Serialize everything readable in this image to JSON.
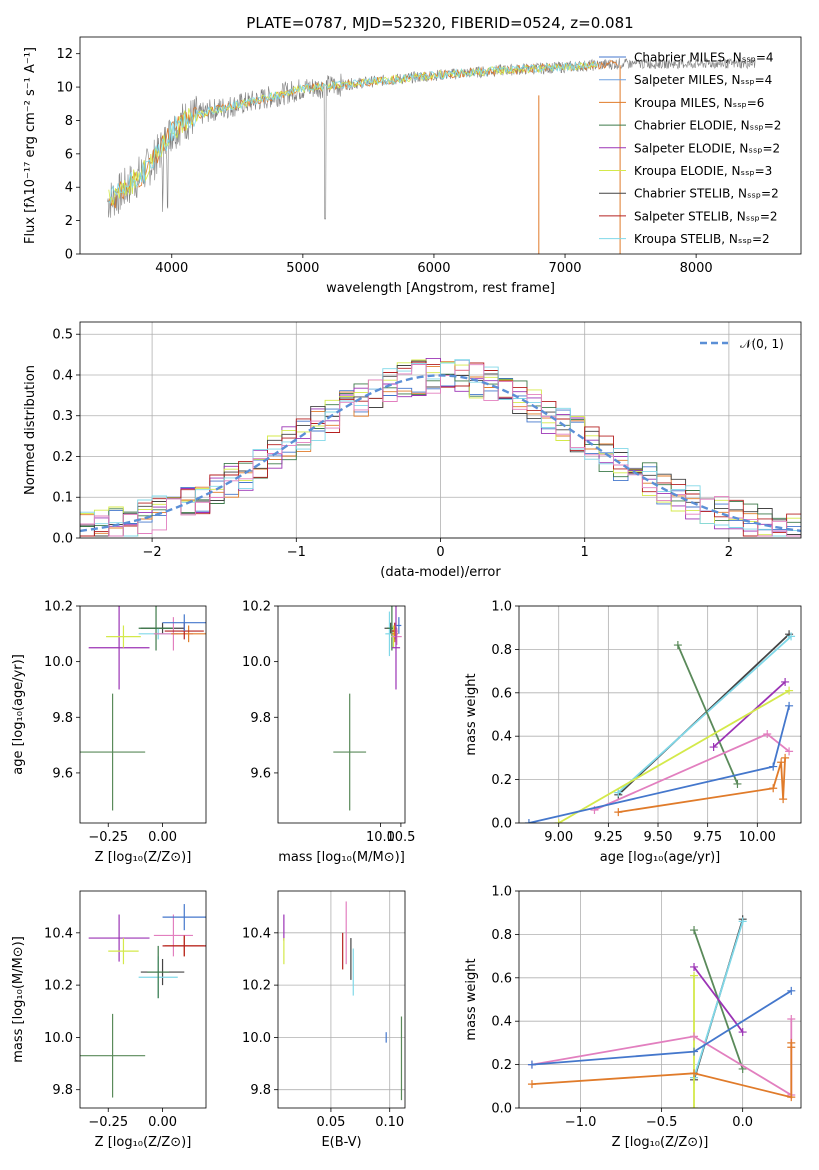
{
  "title": "PLATE=0787, MJD=52320, FIBERID=0524, z=0.081",
  "colors": {
    "chabrier_miles": "#4477cc",
    "salpeter_miles": "#6fa0e0",
    "kroupa_miles": "#e07b2a",
    "chabrier_elodie": "#3d7a4a",
    "salpeter_elodie": "#9b33b5",
    "kroupa_elodie": "#d4e94a",
    "chabrier_stelib": "#444444",
    "salpeter_stelib": "#b52020",
    "kroupa_stelib": "#80d8e8",
    "pink": "#e27fbf",
    "green": "#5a8a5a",
    "spectrum": "#808080",
    "normal_curve": "#5b8fd6"
  },
  "chart_data": [
    {
      "id": "spectrum",
      "type": "line",
      "xlabel": "wavelength [Angstrom, rest frame]",
      "ylabel": "Flux [fλ10⁻¹⁷ erg cm⁻² s⁻¹ A⁻¹]",
      "xlim": [
        3300,
        8800
      ],
      "ylim": [
        0,
        13
      ],
      "xticks": [
        4000,
        5000,
        6000,
        7000,
        8000
      ],
      "yticks": [
        0,
        2,
        4,
        6,
        8,
        10,
        12
      ],
      "grid": false,
      "legend": "right",
      "series_names": [
        "Chabrier MILES, Nₛₛₚ=4",
        "Salpeter MILES, Nₛₛₚ=4",
        "Kroupa MILES, Nₛₛₚ=6",
        "Chabrier ELODIE, Nₛₛₚ=2",
        "Salpeter ELODIE, Nₛₛₚ=2",
        "Kroupa ELODIE, Nₛₛₚ=3",
        "Chabrier STELIB, Nₛₛₚ=2",
        "Salpeter STELIB, Nₛₛₚ=2",
        "Kroupa STELIB, Nₛₛₚ=2"
      ],
      "continuum": {
        "x": [
          3520,
          3600,
          3700,
          3800,
          3900,
          4000,
          4100,
          4300,
          4600,
          5000,
          5500,
          6000,
          6500,
          7000,
          7400
        ],
        "y": [
          3.2,
          3.6,
          4.3,
          5.0,
          6.0,
          7.4,
          8.0,
          8.6,
          9.1,
          9.9,
          10.3,
          10.7,
          11.0,
          11.2,
          11.4
        ]
      }
    },
    {
      "id": "residuals",
      "type": "bar",
      "xlabel": "(data-model)/error",
      "ylabel": "Normed distribution",
      "xlim": [
        -2.5,
        2.5
      ],
      "ylim": [
        0,
        0.53
      ],
      "xticks": [
        -2,
        -1,
        0,
        1,
        2
      ],
      "yticks": [
        0.0,
        0.1,
        0.2,
        0.3,
        0.4,
        0.5
      ],
      "grid": true,
      "legend": "top-right",
      "legend_label": "𝒩(0, 1)",
      "bin_width": 0.1
    },
    {
      "id": "age_vs_Z",
      "type": "scatter",
      "xlabel": "Z [log₁₀(Z/Z⊙)]",
      "ylabel": "age  [log₁₀(age/yr)]",
      "xlim": [
        -0.38,
        0.2
      ],
      "ylim": [
        9.42,
        10.2
      ],
      "xticks": [
        -0.25,
        0.0
      ],
      "yticks": [
        9.6,
        9.8,
        10.0,
        10.2
      ],
      "grid": false,
      "points": [
        {
          "c": "green",
          "x": -0.23,
          "y": 9.675,
          "xe": 0.15,
          "ye": 0.21
        },
        {
          "c": "salpeter_elodie",
          "x": -0.2,
          "y": 10.05,
          "xe": 0.14,
          "ye": 0.15
        },
        {
          "c": "kroupa_elodie",
          "x": -0.18,
          "y": 10.09,
          "xe": 0.08,
          "ye": 0.04
        },
        {
          "c": "chabrier_stelib",
          "x": 0.0,
          "y": 10.12,
          "xe": 0.1,
          "ye": 0.02
        },
        {
          "c": "kroupa_stelib",
          "x": -0.02,
          "y": 10.1,
          "xe": 0.09,
          "ye": 0.02
        },
        {
          "c": "chabrier_elodie",
          "x": -0.03,
          "y": 10.12,
          "xe": 0.08,
          "ye": 0.08
        },
        {
          "c": "pink",
          "x": 0.05,
          "y": 10.1,
          "xe": 0.09,
          "ye": 0.06
        },
        {
          "c": "kroupa_miles",
          "x": 0.12,
          "y": 10.1,
          "xe": 0.08,
          "ye": 0.03
        },
        {
          "c": "salpeter_stelib",
          "x": 0.1,
          "y": 10.11,
          "xe": 0.09,
          "ye": 0.03
        },
        {
          "c": "chabrier_miles",
          "x": 0.1,
          "y": 10.14,
          "xe": 0.1,
          "ye": 0.03
        }
      ]
    },
    {
      "id": "age_vs_mass",
      "type": "scatter",
      "xlabel": "mass [log₁₀(M/M⊙)]",
      "ylabel": "",
      "xlim": [
        7.5,
        10.6
      ],
      "ylim": [
        9.42,
        10.2
      ],
      "xticks": [
        10.0,
        10.5
      ],
      "yticks": [
        9.6,
        9.8,
        10.0,
        10.2
      ],
      "grid": false,
      "points": [
        {
          "c": "green",
          "x": 9.25,
          "y": 9.675,
          "xe": 0.4,
          "ye": 0.21
        },
        {
          "c": "chabrier_stelib",
          "x": 10.25,
          "y": 10.12,
          "xe": 0.15,
          "ye": 0.02
        },
        {
          "c": "kroupa_stelib",
          "x": 10.22,
          "y": 10.1,
          "xe": 0.1,
          "ye": 0.08
        },
        {
          "c": "chabrier_elodie",
          "x": 10.28,
          "y": 10.12,
          "xe": 0.12,
          "ye": 0.08
        },
        {
          "c": "kroupa_elodie",
          "x": 10.32,
          "y": 10.09,
          "xe": 0.06,
          "ye": 0.04
        },
        {
          "c": "salpeter_stelib",
          "x": 10.35,
          "y": 10.11,
          "xe": 0.07,
          "ye": 0.03
        },
        {
          "c": "kroupa_miles",
          "x": 10.35,
          "y": 10.1,
          "xe": 0.08,
          "ye": 0.03
        },
        {
          "c": "pink",
          "x": 10.4,
          "y": 10.09,
          "xe": 0.12,
          "ye": 0.03
        },
        {
          "c": "salpeter_elodie",
          "x": 10.38,
          "y": 10.05,
          "xe": 0.1,
          "ye": 0.15
        },
        {
          "c": "chabrier_miles",
          "x": 10.45,
          "y": 10.13,
          "xe": 0.06,
          "ye": 0.03
        }
      ]
    },
    {
      "id": "weight_vs_age",
      "type": "line",
      "xlabel": "age  [log₁₀(age/yr)]",
      "ylabel": "mass weight",
      "xlim": [
        8.8,
        10.22
      ],
      "ylim": [
        0,
        1.0
      ],
      "xticks": [
        9.0,
        9.25,
        9.5,
        9.75,
        10.0
      ],
      "yticks": [
        0.0,
        0.2,
        0.4,
        0.6,
        0.8,
        1.0
      ],
      "grid": true,
      "lines": [
        {
          "c": "chabrier_stelib",
          "x": [
            9.3,
            10.16
          ],
          "y": [
            0.13,
            0.87
          ]
        },
        {
          "c": "kroupa_stelib",
          "x": [
            9.3,
            10.17
          ],
          "y": [
            0.14,
            0.86
          ]
        },
        {
          "c": "green",
          "x": [
            9.6,
            9.9
          ],
          "y": [
            0.82,
            0.18
          ]
        },
        {
          "c": "salpeter_elodie",
          "x": [
            9.78,
            10.14
          ],
          "y": [
            0.35,
            0.65
          ]
        },
        {
          "c": "kroupa_elodie",
          "x": [
            9.0,
            10.16
          ],
          "y": [
            0.0,
            0.61
          ]
        },
        {
          "c": "pink",
          "x": [
            9.18,
            10.05,
            10.16
          ],
          "y": [
            0.06,
            0.41,
            0.33
          ]
        },
        {
          "c": "chabrier_miles",
          "x": [
            8.85,
            10.08,
            10.16
          ],
          "y": [
            0.0,
            0.26,
            0.54
          ]
        },
        {
          "c": "kroupa_miles",
          "x": [
            9.3,
            10.08,
            10.12,
            10.13,
            10.14
          ],
          "y": [
            0.05,
            0.16,
            0.28,
            0.11,
            0.3
          ]
        }
      ]
    },
    {
      "id": "mass_vs_Z",
      "type": "scatter",
      "xlabel": "Z [log₁₀(Z/Z⊙)]",
      "ylabel": "mass [log₁₀(M/M⊙)]",
      "xlim": [
        -0.38,
        0.2
      ],
      "ylim": [
        9.73,
        10.56
      ],
      "xticks": [
        -0.25,
        0.0
      ],
      "yticks": [
        9.8,
        10.0,
        10.2,
        10.4
      ],
      "grid": false,
      "points": [
        {
          "c": "green",
          "x": -0.23,
          "y": 9.93,
          "xe": 0.15,
          "ye": 0.16
        },
        {
          "c": "salpeter_elodie",
          "x": -0.2,
          "y": 10.38,
          "xe": 0.14,
          "ye": 0.09
        },
        {
          "c": "kroupa_elodie",
          "x": -0.18,
          "y": 10.33,
          "xe": 0.07,
          "ye": 0.05
        },
        {
          "c": "chabrier_stelib",
          "x": 0.0,
          "y": 10.25,
          "xe": 0.1,
          "ye": 0.05
        },
        {
          "c": "kroupa_stelib",
          "x": -0.02,
          "y": 10.23,
          "xe": 0.09,
          "ye": 0.08
        },
        {
          "c": "chabrier_elodie",
          "x": -0.02,
          "y": 10.25,
          "xe": 0.05,
          "ye": 0.1
        },
        {
          "c": "pink",
          "x": 0.05,
          "y": 10.39,
          "xe": 0.09,
          "ye": 0.08
        },
        {
          "c": "kroupa_miles",
          "x": 0.1,
          "y": 10.35,
          "xe": 0.09,
          "ye": 0.04
        },
        {
          "c": "salpeter_stelib",
          "x": 0.1,
          "y": 10.35,
          "xe": 0.1,
          "ye": 0.04
        },
        {
          "c": "chabrier_miles",
          "x": 0.1,
          "y": 10.46,
          "xe": 0.1,
          "ye": 0.05
        }
      ]
    },
    {
      "id": "mass_vs_ebv",
      "type": "scatter",
      "xlabel": "E(B-V)",
      "ylabel": "",
      "xlim": [
        0.005,
        0.113
      ],
      "ylim": [
        9.73,
        10.56
      ],
      "xticks": [
        0.05,
        0.1
      ],
      "yticks": [
        9.8,
        10.0,
        10.2,
        10.4
      ],
      "grid": true,
      "points": [
        {
          "c": "salpeter_elodie",
          "x": 0.01,
          "y": 10.42,
          "xe": 0,
          "ye": 0.05
        },
        {
          "c": "kroupa_elodie",
          "x": 0.01,
          "y": 10.33,
          "xe": 0,
          "ye": 0.05
        },
        {
          "c": "salpeter_stelib",
          "x": 0.06,
          "y": 10.33,
          "xe": 0,
          "ye": 0.07
        },
        {
          "c": "pink",
          "x": 0.063,
          "y": 10.4,
          "xe": 0,
          "ye": 0.12
        },
        {
          "c": "chabrier_stelib",
          "x": 0.067,
          "y": 10.3,
          "xe": 0,
          "ye": 0.08
        },
        {
          "c": "kroupa_stelib",
          "x": 0.069,
          "y": 10.25,
          "xe": 0,
          "ye": 0.09
        },
        {
          "c": "green",
          "x": 0.11,
          "y": 9.92,
          "xe": 0,
          "ye": 0.16
        },
        {
          "c": "chabrier_miles",
          "x": 0.097,
          "y": 10.0,
          "xe": 0,
          "ye": 0.02
        }
      ]
    },
    {
      "id": "weight_vs_Z",
      "type": "line",
      "xlabel": "Z [log₁₀(Z/Z⊙)]",
      "ylabel": "mass weight",
      "xlim": [
        -1.38,
        0.36
      ],
      "ylim": [
        0,
        1.0
      ],
      "xticks": [
        -1.0,
        -0.5,
        0.0
      ],
      "yticks": [
        0.0,
        0.2,
        0.4,
        0.6,
        0.8,
        1.0
      ],
      "grid": true,
      "lines": [
        {
          "c": "chabrier_stelib",
          "x": [
            -0.3,
            0.0
          ],
          "y": [
            0.13,
            0.87
          ]
        },
        {
          "c": "kroupa_stelib",
          "x": [
            -0.3,
            0.0
          ],
          "y": [
            0.14,
            0.86
          ]
        },
        {
          "c": "kroupa_elodie",
          "x": [
            -0.3,
            -0.3
          ],
          "y": [
            0.0,
            0.61
          ]
        },
        {
          "c": "green",
          "x": [
            -0.3,
            0.0
          ],
          "y": [
            0.82,
            0.18
          ]
        },
        {
          "c": "salpeter_elodie",
          "x": [
            -0.3,
            0.0
          ],
          "y": [
            0.65,
            0.35
          ]
        },
        {
          "c": "pink",
          "x": [
            -1.3,
            -0.3,
            0.3,
            0.3
          ],
          "y": [
            0.2,
            0.33,
            0.06,
            0.41
          ]
        },
        {
          "c": "chabrier_miles",
          "x": [
            -1.3,
            -0.3,
            0.3
          ],
          "y": [
            0.2,
            0.26,
            0.54
          ]
        },
        {
          "c": "kroupa_miles",
          "x": [
            -1.3,
            -0.3,
            0.3,
            0.3,
            0.3
          ],
          "y": [
            0.11,
            0.16,
            0.05,
            0.28,
            0.3
          ]
        }
      ]
    }
  ]
}
